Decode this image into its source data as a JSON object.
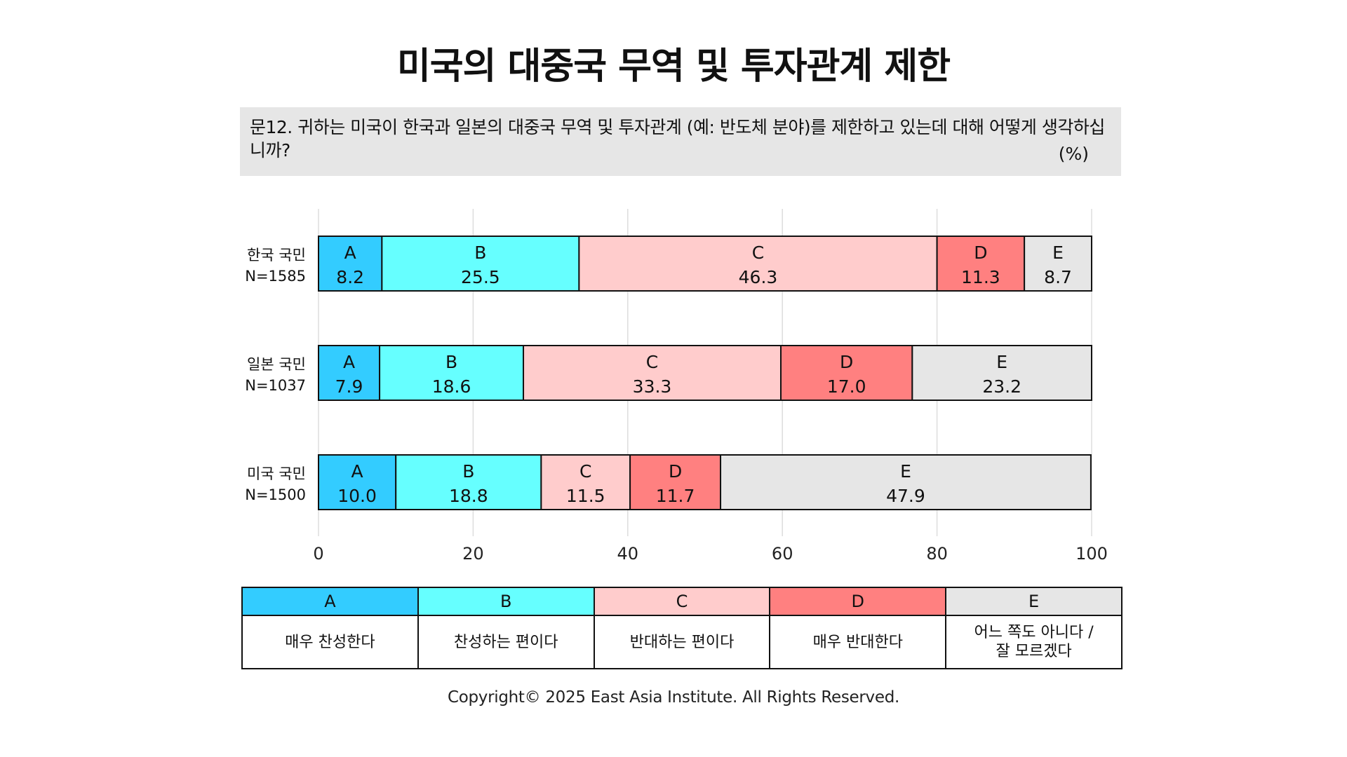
{
  "title": "미국의 대중국 무역 및 투자관계 제한",
  "question": {
    "text": "문12. 귀하는 미국이 한국과 일본의 대중국 무역 및 투자관계 (예: 반도체 분야)를 제한하고 있는데 대해 어떻게 생각하십니까?",
    "unit": "(%)"
  },
  "chart_data": {
    "type": "bar",
    "orientation": "horizontal",
    "stacked": true,
    "xlim": [
      0,
      100
    ],
    "x_ticks": [
      "0",
      "20",
      "40",
      "60",
      "80",
      "100"
    ],
    "grid": true,
    "categories": [
      {
        "label": "한국 국민",
        "n": "N=1585"
      },
      {
        "label": "일본 국민",
        "n": "N=1037"
      },
      {
        "label": "미국 국민",
        "n": "N=1500"
      }
    ],
    "series": [
      {
        "name": "A",
        "color": "#33ccff",
        "values": [
          8.2,
          7.9,
          10.0
        ],
        "labels": [
          "8.2",
          "7.9",
          "10.0"
        ]
      },
      {
        "name": "B",
        "color": "#66ffff",
        "values": [
          25.5,
          18.6,
          18.8
        ],
        "labels": [
          "25.5",
          "18.6",
          "18.8"
        ]
      },
      {
        "name": "C",
        "color": "#ffcccc",
        "values": [
          46.3,
          33.3,
          11.5
        ],
        "labels": [
          "46.3",
          "33.3",
          "11.5"
        ]
      },
      {
        "name": "D",
        "color": "#ff8080",
        "values": [
          11.3,
          17.0,
          11.7
        ],
        "labels": [
          "11.3",
          "17.0",
          "11.7"
        ]
      },
      {
        "name": "E",
        "color": "#e6e6e6",
        "values": [
          8.7,
          23.2,
          47.9
        ],
        "labels": [
          "8.7",
          "23.2",
          "47.9"
        ]
      }
    ]
  },
  "legend": [
    {
      "key": "A",
      "desc": "매우 찬성한다",
      "color": "#33ccff"
    },
    {
      "key": "B",
      "desc": "찬성하는 편이다",
      "color": "#66ffff"
    },
    {
      "key": "C",
      "desc": "반대하는 편이다",
      "color": "#ffcccc"
    },
    {
      "key": "D",
      "desc": "매우 반대한다",
      "color": "#ff8080"
    },
    {
      "key": "E",
      "desc": "어느 쪽도 아니다 /\n잘 모르겠다",
      "color": "#e6e6e6"
    }
  ],
  "copyright": "Copyright© 2025 East Asia Institute. All Rights Reserved."
}
